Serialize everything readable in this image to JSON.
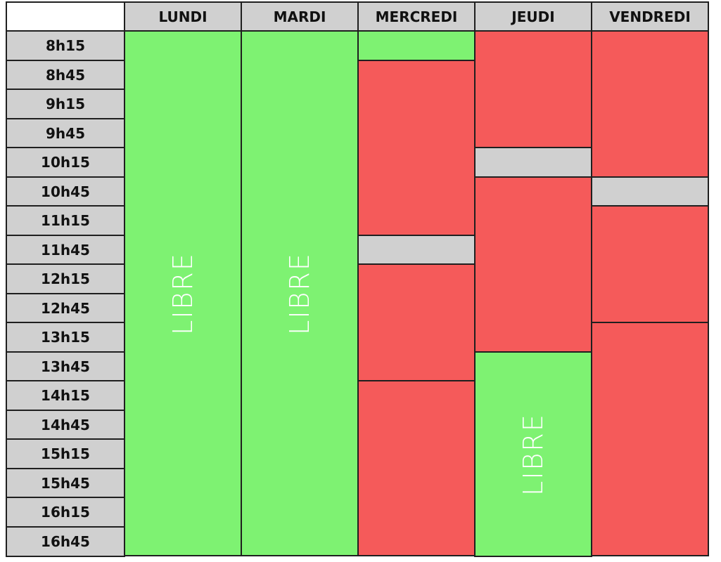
{
  "schedule": {
    "days": [
      "LUNDI",
      "MARDI",
      "MERCREDI",
      "JEUDI",
      "VENDREDI"
    ],
    "times": [
      "8h15",
      "8h45",
      "9h15",
      "9h45",
      "10h15",
      "10h45",
      "11h15",
      "11h45",
      "12h15",
      "12h45",
      "13h15",
      "13h45",
      "14h15",
      "14h45",
      "15h15",
      "15h45",
      "16h15",
      "16h45"
    ],
    "colors": {
      "free": "#7ef272",
      "busy": "#f55a5a",
      "break": "#d0d0d0"
    },
    "blocks": [
      {
        "day": 0,
        "start": 0,
        "end": 18,
        "status": "free",
        "label": "LIBRE"
      },
      {
        "day": 1,
        "start": 0,
        "end": 18,
        "status": "free",
        "label": "LIBRE"
      },
      {
        "day": 2,
        "start": 0,
        "end": 1,
        "status": "free",
        "label": ""
      },
      {
        "day": 2,
        "start": 1,
        "end": 7,
        "status": "busy",
        "label": ""
      },
      {
        "day": 2,
        "start": 7,
        "end": 8,
        "status": "break",
        "label": ""
      },
      {
        "day": 2,
        "start": 8,
        "end": 12,
        "status": "busy",
        "label": ""
      },
      {
        "day": 2,
        "start": 12,
        "end": 18,
        "status": "busy",
        "label": ""
      },
      {
        "day": 3,
        "start": 0,
        "end": 4,
        "status": "busy",
        "label": ""
      },
      {
        "day": 3,
        "start": 4,
        "end": 5,
        "status": "break",
        "label": ""
      },
      {
        "day": 3,
        "start": 5,
        "end": 11,
        "status": "busy",
        "label": ""
      },
      {
        "day": 3,
        "start": 11,
        "end": 18,
        "status": "free",
        "label": "LIBRE"
      },
      {
        "day": 4,
        "start": 0,
        "end": 5,
        "status": "busy",
        "label": ""
      },
      {
        "day": 4,
        "start": 5,
        "end": 6,
        "status": "break",
        "label": ""
      },
      {
        "day": 4,
        "start": 6,
        "end": 10,
        "status": "busy",
        "label": ""
      },
      {
        "day": 4,
        "start": 10,
        "end": 18,
        "status": "busy",
        "label": ""
      }
    ]
  }
}
